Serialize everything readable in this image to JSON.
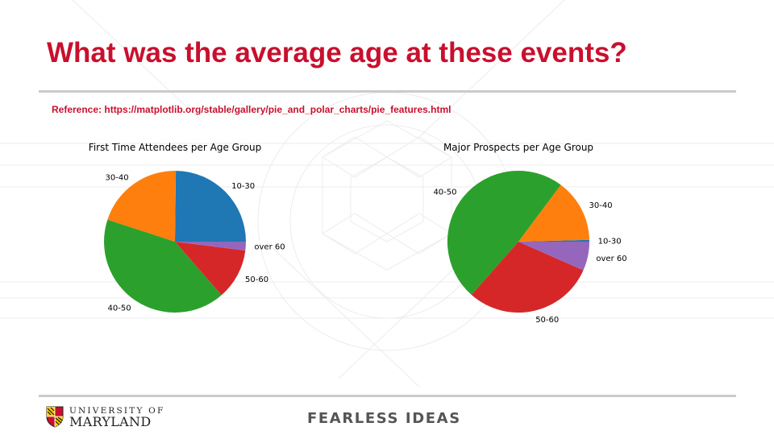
{
  "slide": {
    "title": "What was the average age at these events?",
    "reference": "Reference: https://matplotlib.org/stable/gallery/pie_and_polar_charts/pie_features.html"
  },
  "footer": {
    "university_line1": "UNIVERSITY OF",
    "university_line2": "MARYLAND",
    "tagline": "FEARLESS IDEAS"
  },
  "colors": {
    "brand_red": "#c8102e",
    "rule_gray": "#c9ccc9"
  },
  "chart_data": [
    {
      "type": "pie",
      "title": "First Time Attendees per Age Group",
      "categories": [
        "10-30",
        "30-40",
        "40-50",
        "50-60",
        "over 60"
      ],
      "values": [
        24.8,
        20.2,
        41.4,
        11.6,
        2.0
      ],
      "colors": [
        "#1f77b4",
        "#ff7f0e",
        "#2ca02c",
        "#d62728",
        "#9467bd"
      ],
      "start_angle_deg": 0,
      "counterclock": true
    },
    {
      "type": "pie",
      "title": "Major Prospects per Age Group",
      "categories": [
        "10-30",
        "30-40",
        "40-50",
        "50-60",
        "over 60"
      ],
      "values": [
        0.4,
        14.4,
        48.7,
        29.9,
        6.6
      ],
      "colors": [
        "#1f77b4",
        "#ff7f0e",
        "#2ca02c",
        "#d62728",
        "#9467bd"
      ],
      "start_angle_deg": 0,
      "counterclock": true
    }
  ]
}
